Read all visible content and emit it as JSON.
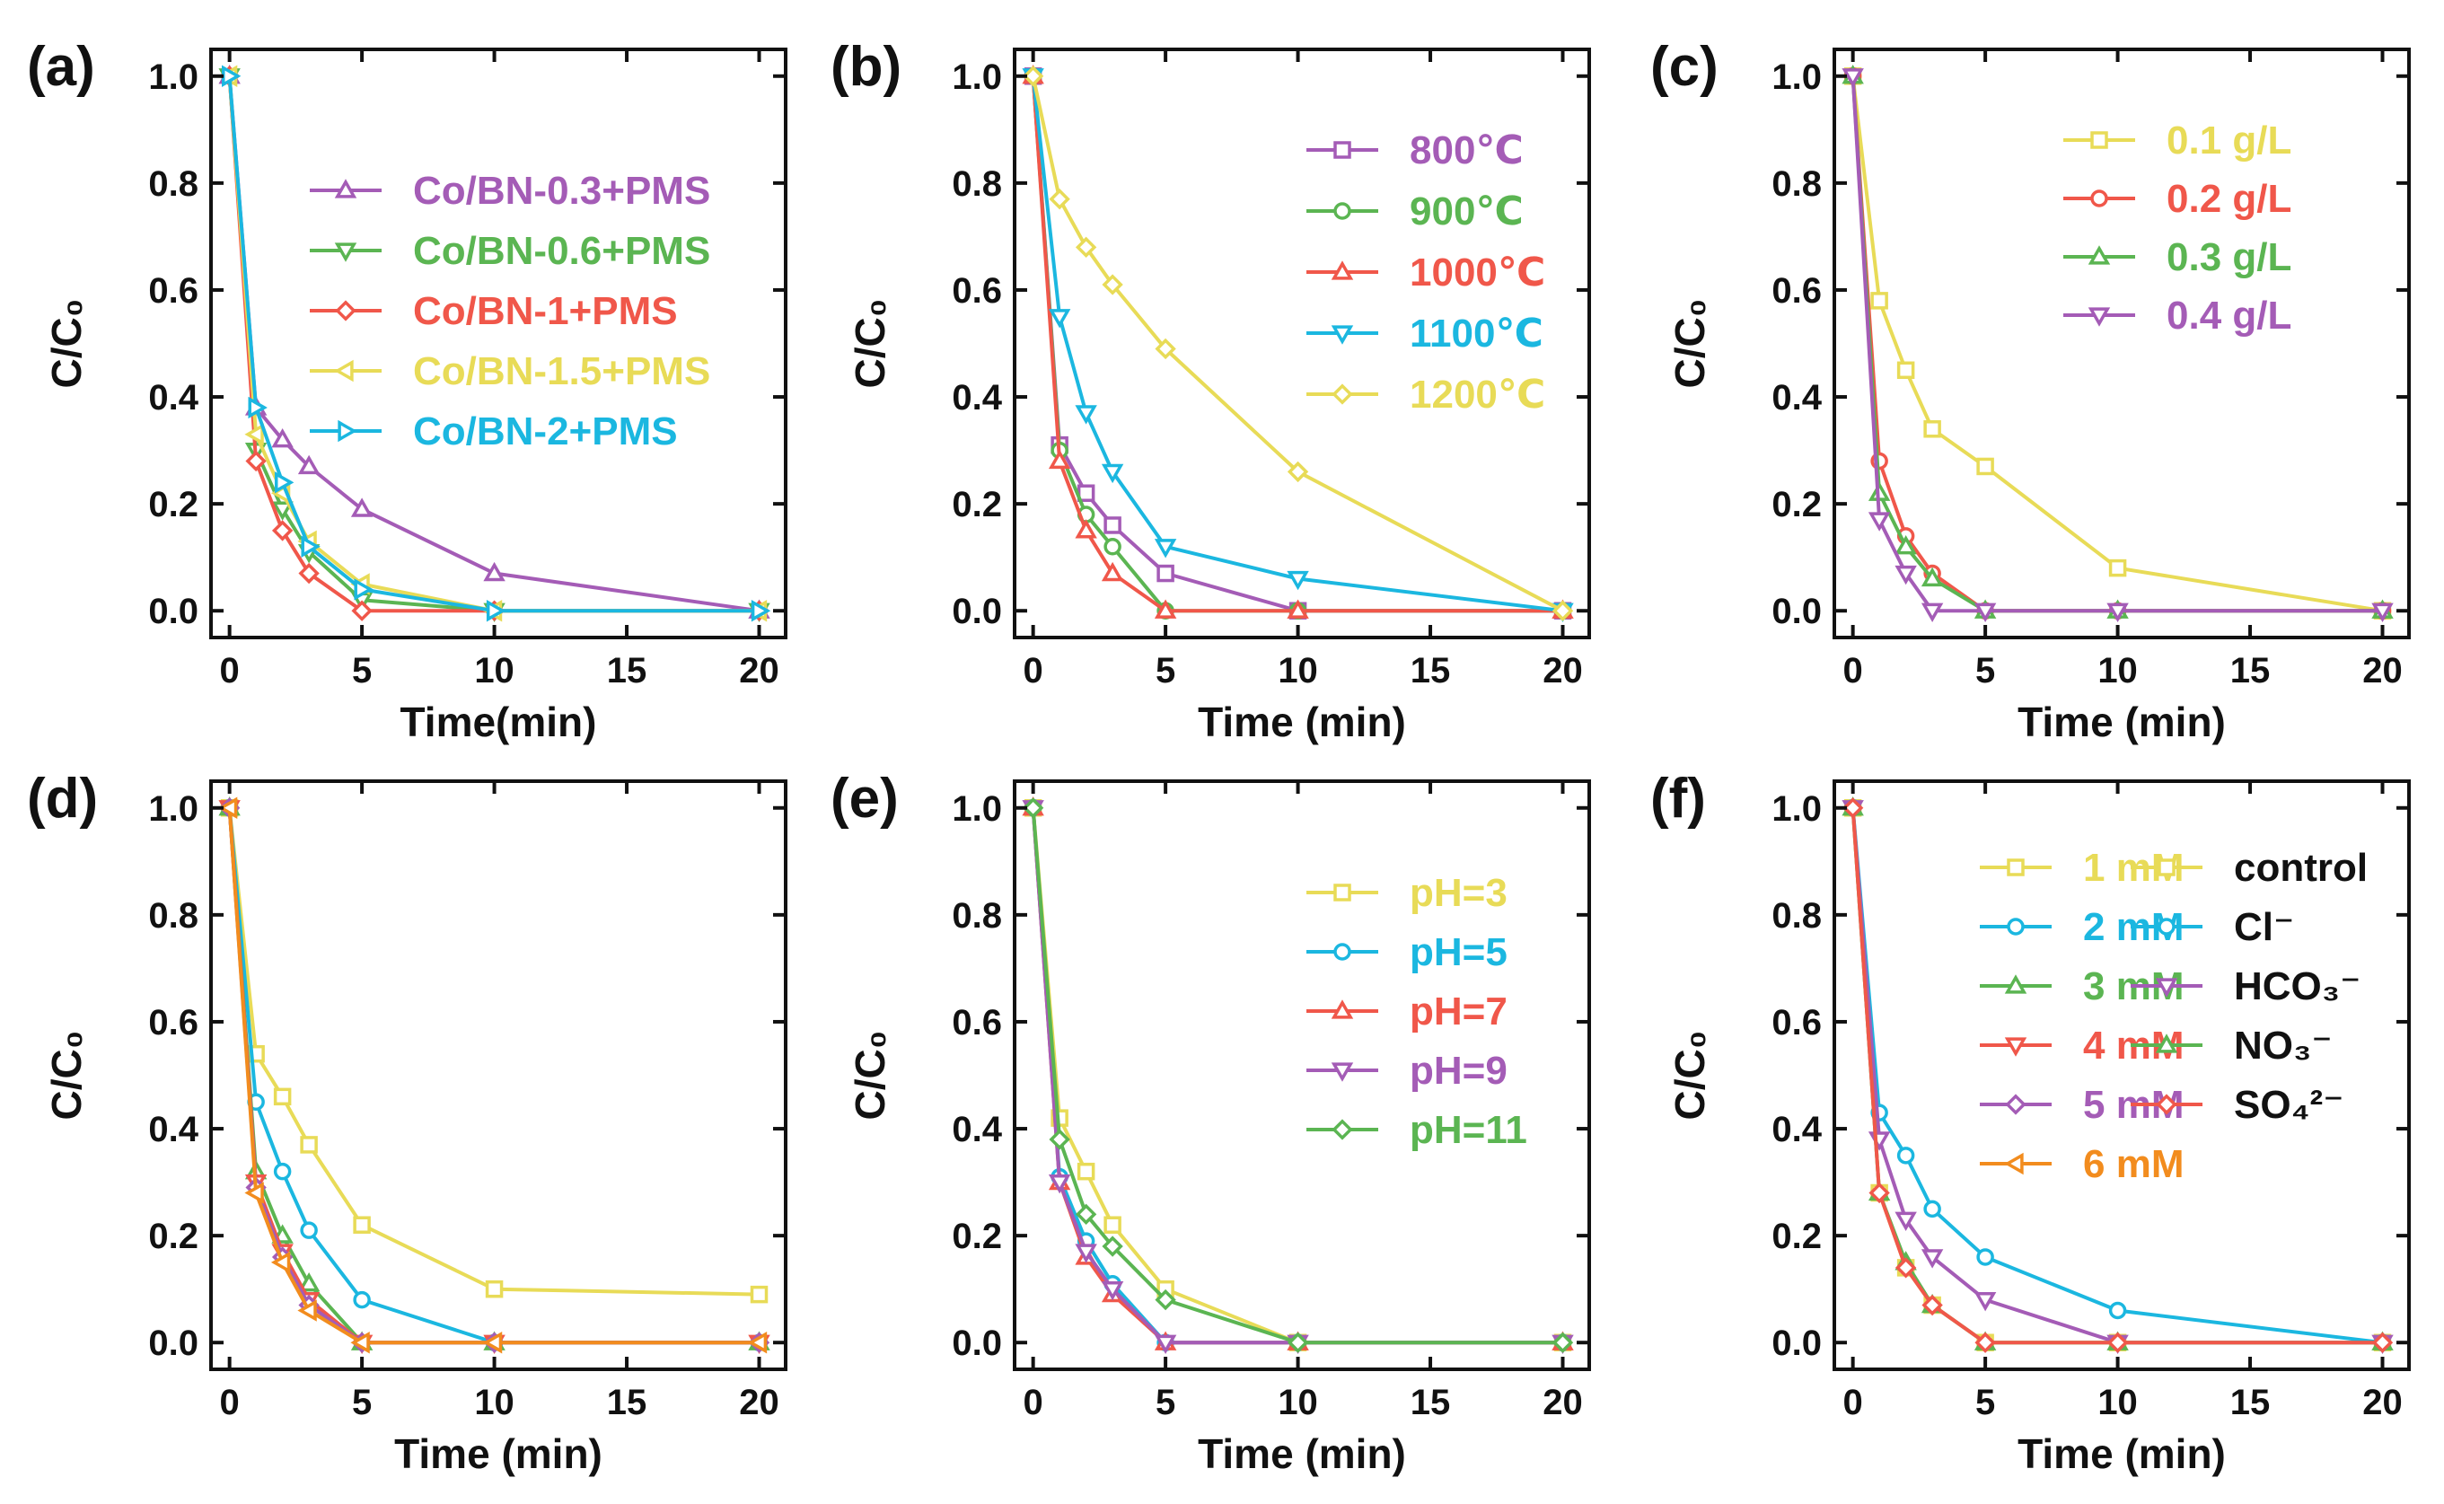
{
  "chart_data": [
    {
      "panel": "(a)",
      "type": "line",
      "xlabel": "Time(min)",
      "ylabel": "C/C₀",
      "xlim": [
        -0.7,
        21
      ],
      "ylim": [
        -0.05,
        1.05
      ],
      "xticks": [
        0,
        5,
        10,
        15,
        20
      ],
      "yticks": [
        0.0,
        0.2,
        0.4,
        0.6,
        0.8,
        1.0
      ],
      "legend_position": "top-right",
      "legend_color_text": true,
      "series": [
        {
          "name": "Co/BN-0.3+PMS",
          "color": "#A45CB6",
          "marker": "triangle-up",
          "x": [
            0,
            1,
            2,
            3,
            5,
            10,
            20
          ],
          "y": [
            1.0,
            0.38,
            0.32,
            0.27,
            0.19,
            0.07,
            0.0
          ]
        },
        {
          "name": "Co/BN-0.6+PMS",
          "color": "#5BB552",
          "marker": "triangle-down",
          "x": [
            0,
            1,
            2,
            3,
            5,
            10,
            20
          ],
          "y": [
            1.0,
            0.3,
            0.19,
            0.11,
            0.02,
            0.0,
            0.0
          ]
        },
        {
          "name": "Co/BN-1+PMS",
          "color": "#F0574A",
          "marker": "diamond",
          "x": [
            0,
            1,
            2,
            3,
            5,
            10,
            20
          ],
          "y": [
            1.0,
            0.28,
            0.15,
            0.07,
            0.0,
            0.0,
            0.0
          ]
        },
        {
          "name": "Co/BN-1.5+PMS",
          "color": "#E8DB57",
          "marker": "triangle-left",
          "x": [
            0,
            1,
            2,
            3,
            5,
            10,
            20
          ],
          "y": [
            1.0,
            0.33,
            0.22,
            0.13,
            0.05,
            0.0,
            0.0
          ]
        },
        {
          "name": "Co/BN-2+PMS",
          "color": "#1BB7E0",
          "marker": "triangle-right",
          "x": [
            0,
            1,
            2,
            3,
            5,
            10,
            20
          ],
          "y": [
            1.0,
            0.38,
            0.24,
            0.12,
            0.04,
            0.0,
            0.0
          ]
        }
      ]
    },
    {
      "panel": "(b)",
      "type": "line",
      "xlabel": "Time (min)",
      "ylabel": "C/C₀",
      "xlim": [
        -0.7,
        21
      ],
      "ylim": [
        -0.05,
        1.05
      ],
      "xticks": [
        0,
        5,
        10,
        15,
        20
      ],
      "yticks": [
        0.0,
        0.2,
        0.4,
        0.6,
        0.8,
        1.0
      ],
      "legend_position": "top-right",
      "legend_color_text": true,
      "series": [
        {
          "name": "800℃",
          "color": "#A45CB6",
          "marker": "square",
          "x": [
            0,
            1,
            2,
            3,
            5,
            10,
            20
          ],
          "y": [
            1.0,
            0.31,
            0.22,
            0.16,
            0.07,
            0.0,
            0.0
          ]
        },
        {
          "name": "900℃",
          "color": "#5BB552",
          "marker": "circle",
          "x": [
            0,
            1,
            2,
            3,
            5,
            10,
            20
          ],
          "y": [
            1.0,
            0.3,
            0.18,
            0.12,
            0.0,
            0.0,
            0.0
          ]
        },
        {
          "name": "1000℃",
          "color": "#F0574A",
          "marker": "triangle-up",
          "x": [
            0,
            1,
            2,
            3,
            5,
            10,
            20
          ],
          "y": [
            1.0,
            0.28,
            0.15,
            0.07,
            0.0,
            0.0,
            0.0
          ]
        },
        {
          "name": "1100℃",
          "color": "#1BB7E0",
          "marker": "triangle-down",
          "x": [
            0,
            1,
            2,
            3,
            5,
            10,
            20
          ],
          "y": [
            1.0,
            0.55,
            0.37,
            0.26,
            0.12,
            0.06,
            0.0
          ]
        },
        {
          "name": "1200℃",
          "color": "#E8DB57",
          "marker": "diamond",
          "x": [
            0,
            1,
            2,
            3,
            5,
            10,
            20
          ],
          "y": [
            1.0,
            0.77,
            0.68,
            0.61,
            0.49,
            0.26,
            0.0
          ]
        }
      ]
    },
    {
      "panel": "(c)",
      "type": "line",
      "xlabel": "Time (min)",
      "ylabel": "C/C₀",
      "xlim": [
        -0.7,
        21
      ],
      "ylim": [
        -0.05,
        1.05
      ],
      "xticks": [
        0,
        5,
        10,
        15,
        20
      ],
      "yticks": [
        0.0,
        0.2,
        0.4,
        0.6,
        0.8,
        1.0
      ],
      "legend_position": "top-right",
      "legend_color_text": true,
      "series": [
        {
          "name": "0.1 g/L",
          "color": "#E8DB57",
          "marker": "square",
          "x": [
            0,
            1,
            2,
            3,
            5,
            10,
            20
          ],
          "y": [
            1.0,
            0.58,
            0.45,
            0.34,
            0.27,
            0.08,
            0.0
          ]
        },
        {
          "name": "0.2 g/L",
          "color": "#F0574A",
          "marker": "circle",
          "x": [
            0,
            1,
            2,
            3,
            5,
            10,
            20
          ],
          "y": [
            1.0,
            0.28,
            0.14,
            0.07,
            0.0,
            0.0,
            0.0
          ]
        },
        {
          "name": "0.3 g/L",
          "color": "#5BB552",
          "marker": "triangle-up",
          "x": [
            0,
            1,
            2,
            3,
            5,
            10,
            20
          ],
          "y": [
            1.0,
            0.22,
            0.12,
            0.06,
            0.0,
            0.0,
            0.0
          ]
        },
        {
          "name": "0.4 g/L",
          "color": "#A45CB6",
          "marker": "triangle-down",
          "x": [
            0,
            1,
            2,
            3,
            5,
            10,
            20
          ],
          "y": [
            1.0,
            0.17,
            0.07,
            0.0,
            0.0,
            0.0,
            0.0
          ]
        }
      ]
    },
    {
      "panel": "(d)",
      "type": "line",
      "xlabel": "Time (min)",
      "ylabel": "C/C₀",
      "xlim": [
        -0.7,
        21
      ],
      "ylim": [
        -0.05,
        1.05
      ],
      "xticks": [
        0,
        5,
        10,
        15,
        20
      ],
      "yticks": [
        0.0,
        0.2,
        0.4,
        0.6,
        0.8,
        1.0
      ],
      "legend_position": "top-right",
      "legend_color_text": true,
      "series": [
        {
          "name": "1 mM",
          "color": "#E8DB57",
          "marker": "square",
          "x": [
            0,
            1,
            2,
            3,
            5,
            10,
            20
          ],
          "y": [
            1.0,
            0.54,
            0.46,
            0.37,
            0.22,
            0.1,
            0.09
          ]
        },
        {
          "name": "2 mM",
          "color": "#1BB7E0",
          "marker": "circle",
          "x": [
            0,
            1,
            2,
            3,
            5,
            10,
            20
          ],
          "y": [
            1.0,
            0.45,
            0.32,
            0.21,
            0.08,
            0.0,
            0.0
          ]
        },
        {
          "name": "3 mM",
          "color": "#5BB552",
          "marker": "triangle-up",
          "x": [
            0,
            1,
            2,
            3,
            5,
            10,
            20
          ],
          "y": [
            1.0,
            0.32,
            0.2,
            0.11,
            0.0,
            0.0,
            0.0
          ]
        },
        {
          "name": "4 mM",
          "color": "#F0574A",
          "marker": "triangle-down",
          "x": [
            0,
            1,
            2,
            3,
            5,
            10,
            20
          ],
          "y": [
            1.0,
            0.3,
            0.17,
            0.08,
            0.0,
            0.0,
            0.0
          ]
        },
        {
          "name": "5 mM",
          "color": "#A45CB6",
          "marker": "diamond",
          "x": [
            0,
            1,
            2,
            3,
            5,
            10,
            20
          ],
          "y": [
            1.0,
            0.29,
            0.16,
            0.07,
            0.0,
            0.0,
            0.0
          ]
        },
        {
          "name": "6 mM",
          "color": "#F28C1E",
          "marker": "triangle-left",
          "x": [
            0,
            1,
            2,
            3,
            5,
            10,
            20
          ],
          "y": [
            1.0,
            0.28,
            0.15,
            0.06,
            0.0,
            0.0,
            0.0
          ]
        }
      ]
    },
    {
      "panel": "(e)",
      "type": "line",
      "xlabel": "Time (min)",
      "ylabel": "C/C₀",
      "xlim": [
        -0.7,
        21
      ],
      "ylim": [
        -0.05,
        1.05
      ],
      "xticks": [
        0,
        5,
        10,
        15,
        20
      ],
      "yticks": [
        0.0,
        0.2,
        0.4,
        0.6,
        0.8,
        1.0
      ],
      "legend_position": "top-right",
      "legend_color_text": true,
      "series": [
        {
          "name": "pH=3",
          "color": "#E8DB57",
          "marker": "square",
          "x": [
            0,
            1,
            2,
            3,
            5,
            10,
            20
          ],
          "y": [
            1.0,
            0.42,
            0.32,
            0.22,
            0.1,
            0.0,
            0.0
          ]
        },
        {
          "name": "pH=5",
          "color": "#1BB7E0",
          "marker": "circle",
          "x": [
            0,
            1,
            2,
            3,
            5,
            10,
            20
          ],
          "y": [
            1.0,
            0.31,
            0.19,
            0.11,
            0.0,
            0.0,
            0.0
          ]
        },
        {
          "name": "pH=7",
          "color": "#F0574A",
          "marker": "triangle-up",
          "x": [
            0,
            1,
            2,
            3,
            5,
            10,
            20
          ],
          "y": [
            1.0,
            0.3,
            0.16,
            0.09,
            0.0,
            0.0,
            0.0
          ]
        },
        {
          "name": "pH=9",
          "color": "#A45CB6",
          "marker": "triangle-down",
          "x": [
            0,
            1,
            2,
            3,
            5,
            10,
            20
          ],
          "y": [
            1.0,
            0.3,
            0.17,
            0.1,
            0.0,
            0.0,
            0.0
          ]
        },
        {
          "name": "pH=11",
          "color": "#5BB552",
          "marker": "diamond",
          "x": [
            0,
            1,
            2,
            3,
            5,
            10,
            20
          ],
          "y": [
            1.0,
            0.38,
            0.24,
            0.18,
            0.08,
            0.0,
            0.0
          ]
        }
      ]
    },
    {
      "panel": "(f)",
      "type": "line",
      "xlabel": "Time (min)",
      "ylabel": "C/C₀",
      "xlim": [
        -0.7,
        21
      ],
      "ylim": [
        -0.05,
        1.05
      ],
      "xticks": [
        0,
        5,
        10,
        15,
        20
      ],
      "yticks": [
        0.0,
        0.2,
        0.4,
        0.6,
        0.8,
        1.0
      ],
      "legend_position": "top-right",
      "legend_color_text": false,
      "series": [
        {
          "name": "control",
          "color": "#E8DB57",
          "marker": "square",
          "x": [
            0,
            1,
            2,
            3,
            5,
            10,
            20
          ],
          "y": [
            1.0,
            0.28,
            0.14,
            0.07,
            0.0,
            0.0,
            0.0
          ]
        },
        {
          "name": "Cl⁻",
          "color": "#1BB7E0",
          "marker": "circle",
          "x": [
            0,
            1,
            2,
            3,
            5,
            10,
            20
          ],
          "y": [
            1.0,
            0.43,
            0.35,
            0.25,
            0.16,
            0.06,
            0.0
          ]
        },
        {
          "name": "HCO₃⁻",
          "color": "#A45CB6",
          "marker": "triangle-down",
          "x": [
            0,
            1,
            2,
            3,
            5,
            10,
            20
          ],
          "y": [
            1.0,
            0.38,
            0.23,
            0.16,
            0.08,
            0.0,
            0.0
          ]
        },
        {
          "name": "NO₃⁻",
          "color": "#5BB552",
          "marker": "triangle-up",
          "x": [
            0,
            1,
            2,
            3,
            5,
            10,
            20
          ],
          "y": [
            1.0,
            0.28,
            0.15,
            0.07,
            0.0,
            0.0,
            0.0
          ]
        },
        {
          "name": "SO₄²⁻",
          "color": "#F0574A",
          "marker": "diamond",
          "x": [
            0,
            1,
            2,
            3,
            5,
            10,
            20
          ],
          "y": [
            1.0,
            0.28,
            0.14,
            0.07,
            0.0,
            0.0,
            0.0
          ]
        }
      ]
    }
  ]
}
